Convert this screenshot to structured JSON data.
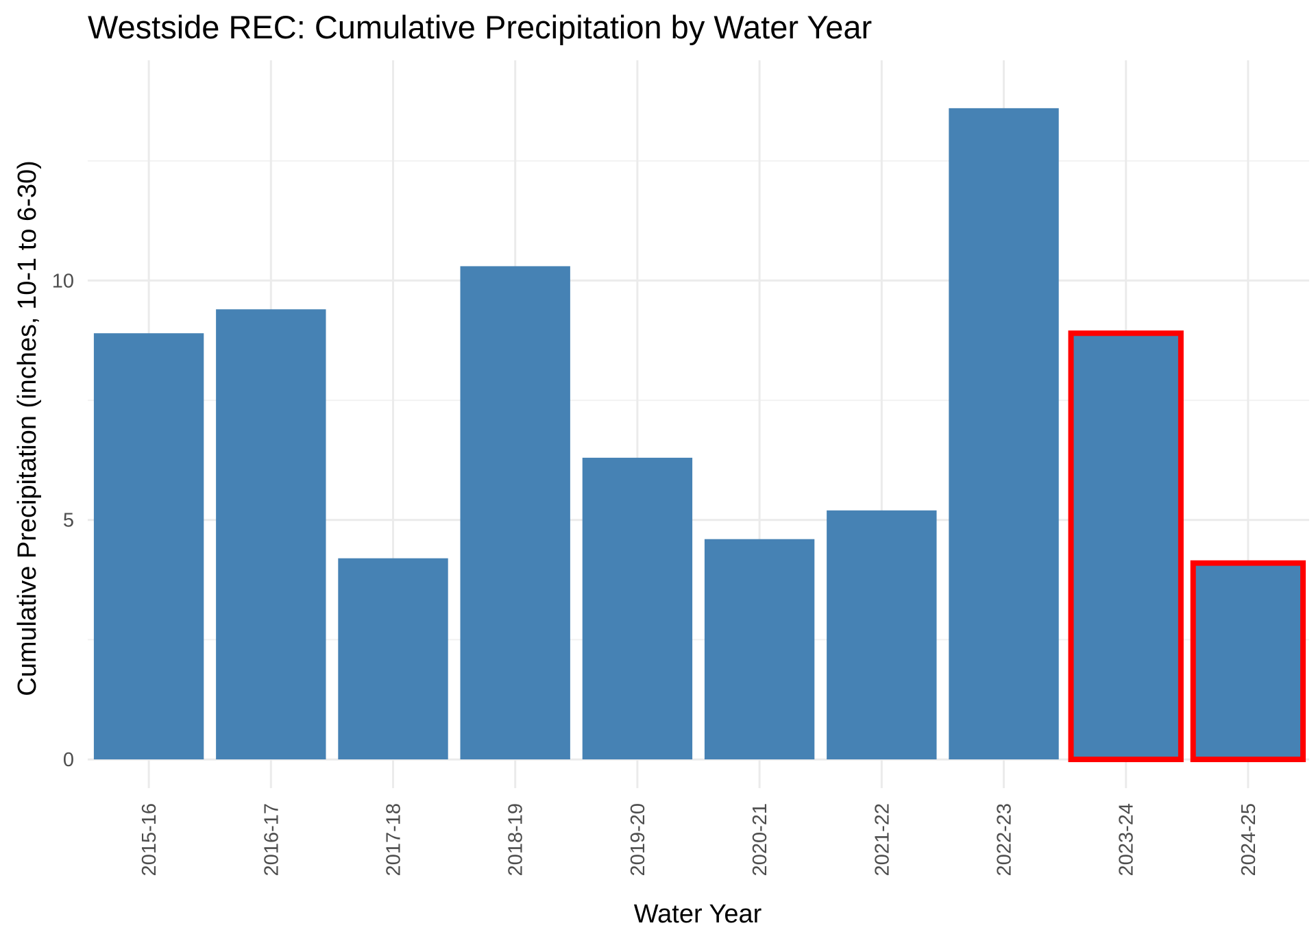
{
  "chart_data": {
    "type": "bar",
    "title": "Westside REC: Cumulative Precipitation by Water Year",
    "xlabel": "Water Year",
    "ylabel": "Cumulative Precipitation (inches, 10-1 to 6-30)",
    "categories": [
      "2015-16",
      "2016-17",
      "2017-18",
      "2018-19",
      "2019-20",
      "2020-21",
      "2021-22",
      "2022-23",
      "2023-24",
      "2024-25"
    ],
    "values": [
      8.9,
      9.4,
      4.2,
      10.3,
      6.3,
      4.6,
      5.2,
      13.6,
      8.9,
      4.1
    ],
    "highlighted": [
      "2023-24",
      "2024-25"
    ],
    "y_ticks": [
      0,
      5,
      10
    ],
    "ylim": [
      -0.6,
      14.6
    ],
    "grid": true,
    "bar_color": "#4682b4",
    "highlight_color": "#ff0000"
  }
}
